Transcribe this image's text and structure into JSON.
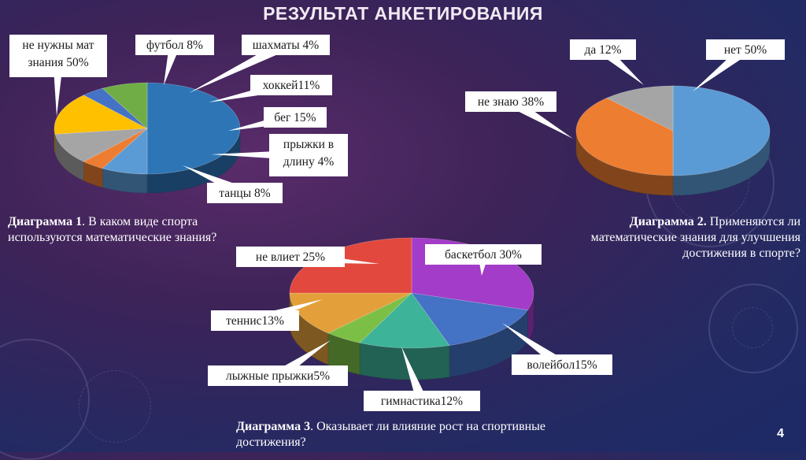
{
  "title": "РЕЗУЛЬТАТ АНКЕТИРОВАНИЯ",
  "page_number": "4",
  "captions": {
    "c1": {
      "label": "Диаграмма 1",
      "text": ". В каком виде спорта используются математические знания?"
    },
    "c2": {
      "label": "Диаграмма 2.",
      "text": " Применяются ли математические знания для улучшения достижения в спорте?"
    },
    "c3": {
      "label": "Диаграмма 3",
      "text": ". Оказывает ли влияние рост на спортивные  достижения?"
    }
  },
  "chart_data": [
    {
      "type": "pie",
      "title": "Диаграмма 1",
      "slices": [
        {
          "name": "не нужны мат знания",
          "value": 50,
          "color": "#2e75b6",
          "labels": [
            "не нужны мат",
            "знания 50%"
          ]
        },
        {
          "name": "футбол",
          "value": 8,
          "color": "#5b9bd5",
          "labels": [
            "футбол 8%"
          ]
        },
        {
          "name": "шахматы",
          "value": 4,
          "color": "#ed7d31",
          "labels": [
            "шахматы 4%"
          ]
        },
        {
          "name": "хоккей",
          "value": 11,
          "color": "#a5a5a5",
          "labels": [
            "хоккей11%"
          ]
        },
        {
          "name": "бег",
          "value": 15,
          "color": "#ffc000",
          "labels": [
            "бег 15%"
          ]
        },
        {
          "name": "прыжки в длину",
          "value": 4,
          "color": "#4472c4",
          "labels": [
            "прыжки в",
            "длину 4%"
          ]
        },
        {
          "name": "танцы",
          "value": 8,
          "color": "#70ad47",
          "labels": [
            "танцы 8%"
          ]
        }
      ]
    },
    {
      "type": "pie",
      "title": "Диаграмма 2",
      "slices": [
        {
          "name": "нет",
          "value": 50,
          "color": "#5b9bd5",
          "labels": [
            "нет 50%"
          ]
        },
        {
          "name": "не знаю",
          "value": 38,
          "color": "#ed7d31",
          "labels": [
            "не знаю 38%"
          ]
        },
        {
          "name": "да",
          "value": 12,
          "color": "#a5a5a5",
          "labels": [
            "да 12%"
          ]
        }
      ]
    },
    {
      "type": "pie",
      "title": "Диаграмма 3",
      "slices": [
        {
          "name": "баскетбол",
          "value": 30,
          "color": "#a33cc8",
          "labels": [
            "баскетбол 30%"
          ]
        },
        {
          "name": "волейбол",
          "value": 15,
          "color": "#4472c4",
          "labels": [
            "волейбол15%"
          ]
        },
        {
          "name": "гимнастика",
          "value": 12,
          "color": "#3db39a",
          "labels": [
            "гимнастика12%"
          ]
        },
        {
          "name": "лыжные прыжки",
          "value": 5,
          "color": "#7cbf46",
          "labels": [
            "лыжные прыжки5%"
          ]
        },
        {
          "name": "теннис",
          "value": 13,
          "color": "#e3a03a",
          "labels": [
            "теннис13%"
          ]
        },
        {
          "name": "не влиет",
          "value": 25,
          "color": "#e2483e",
          "labels": [
            "не влиет 25%"
          ]
        }
      ]
    }
  ]
}
